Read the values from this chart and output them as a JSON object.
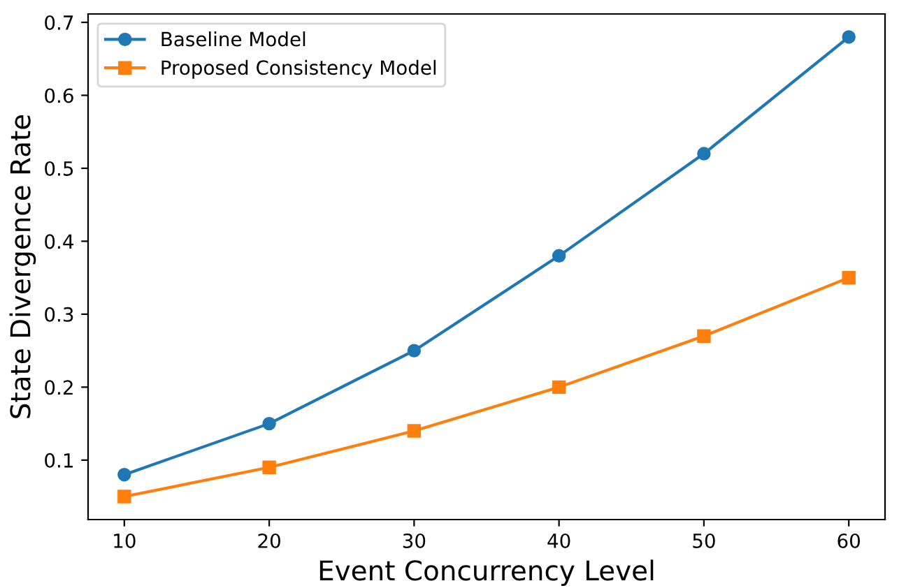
{
  "chart_data": {
    "type": "line",
    "xlabel": "Event Concurrency Level",
    "ylabel": "State Divergence Rate",
    "x": [
      10,
      20,
      30,
      40,
      50,
      60
    ],
    "series": [
      {
        "name": "Baseline Model",
        "color": "#1f77b4",
        "marker": "circle",
        "values": [
          0.08,
          0.15,
          0.25,
          0.38,
          0.52,
          0.68
        ]
      },
      {
        "name": "Proposed Consistency Model",
        "color": "#ff7f0e",
        "marker": "square",
        "values": [
          0.05,
          0.09,
          0.14,
          0.2,
          0.27,
          0.35
        ]
      }
    ],
    "xlim": [
      7.5,
      62.5
    ],
    "ylim": [
      0.0185,
      0.7115
    ],
    "xticks": [
      10,
      20,
      30,
      40,
      50,
      60
    ],
    "yticks": [
      0.1,
      0.2,
      0.3,
      0.4,
      0.5,
      0.6,
      0.7
    ],
    "grid": false,
    "legend": "top left",
    "line_style": "solid"
  }
}
